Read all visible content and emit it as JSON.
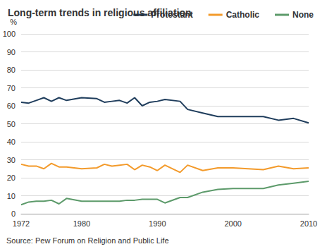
{
  "chart_data": {
    "type": "line",
    "title": "Long-term trends in religious affiliation",
    "ylabel": "%",
    "source": "Source: Pew Forum on Religion and Public Life",
    "x": [
      1972,
      1973,
      1974,
      1975,
      1976,
      1977,
      1978,
      1980,
      1982,
      1983,
      1984,
      1985,
      1986,
      1987,
      1988,
      1989,
      1990,
      1991,
      1993,
      1994,
      1996,
      1998,
      2000,
      2002,
      2004,
      2006,
      2008,
      2010
    ],
    "series": [
      {
        "name": "Protestant",
        "color": "#1f3d5c",
        "values": [
          62,
          61.5,
          63,
          64.5,
          62.5,
          64.5,
          63,
          64.5,
          64,
          62,
          62.5,
          63,
          61.5,
          64.5,
          60,
          62,
          62.5,
          63.5,
          62.5,
          58,
          56,
          54,
          54,
          54,
          54,
          52,
          53,
          50.5
        ]
      },
      {
        "name": "Catholic",
        "color": "#f39a2a",
        "values": [
          27.5,
          26.5,
          26.5,
          25,
          28,
          26,
          26,
          25,
          25.5,
          27.5,
          26.5,
          27,
          27.5,
          24.5,
          27,
          26,
          24,
          27,
          23,
          27,
          24,
          25.5,
          25.5,
          25,
          24.5,
          26.5,
          25,
          25.5
        ]
      },
      {
        "name": "None",
        "color": "#5c9a6a",
        "values": [
          5,
          6.5,
          7,
          7,
          7.5,
          5.5,
          8.5,
          7,
          7,
          7,
          7,
          7,
          7.5,
          7.5,
          8,
          8,
          8,
          6,
          9,
          9,
          12,
          13.5,
          14,
          14,
          14,
          16,
          17,
          18
        ]
      }
    ],
    "xlim": [
      1972,
      2010
    ],
    "xticks": [
      1972,
      1980,
      1990,
      2000,
      2010
    ],
    "ylim": [
      0,
      100
    ],
    "yticks": [
      0,
      10,
      20,
      30,
      40,
      50,
      60,
      70,
      80,
      90,
      100
    ],
    "grid": true,
    "legend": "top-right"
  }
}
